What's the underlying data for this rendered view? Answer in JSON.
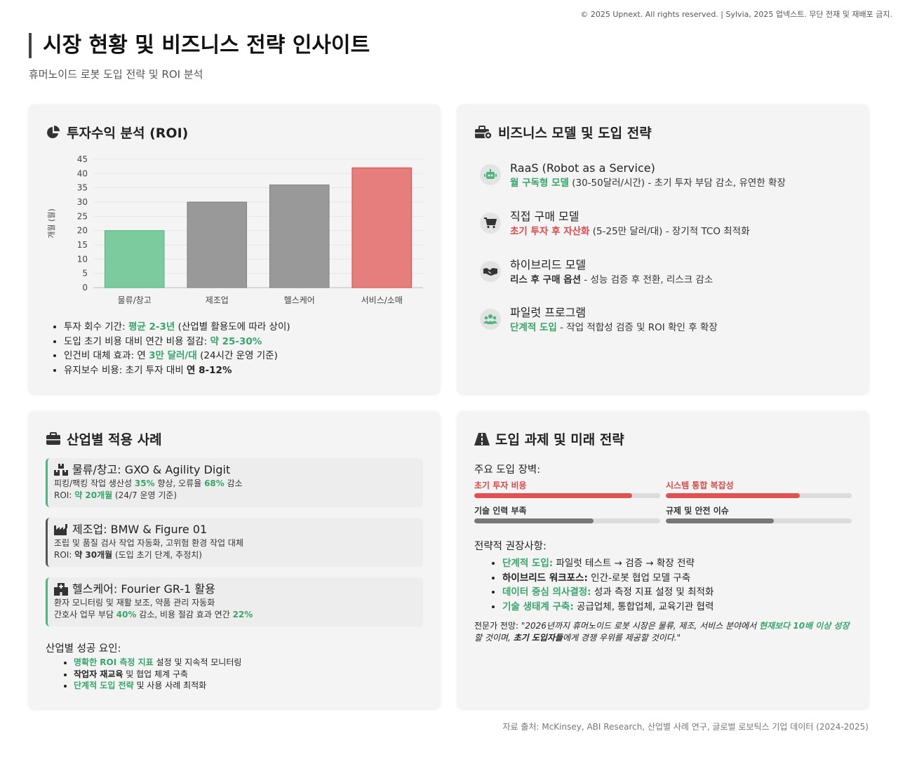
{
  "copyright": "© 2025 Upnext. All rights reserved. | Sylvia, 2025 업넥스트. 무단 전재 및 재배포 금지.",
  "header": {
    "title": "시장 현황 및 비즈니스 전략 인사이트",
    "subtitle": "휴머노이드 로봇 도입 전략 및 ROI 분석"
  },
  "roi": {
    "title": "투자수익 분석 (ROI)",
    "bullets": [
      {
        "pre": "투자 회수 기간: ",
        "hl": "평균 2-3년",
        "post": " (산업별 활용도에 따라 상이)"
      },
      {
        "pre": "도입 초기 비용 대비 연간 비용 절감: ",
        "hl": "약 25-30%",
        "post": ""
      },
      {
        "pre": "인건비 대체 효과: 연 ",
        "hl": "3만 달러/대",
        "post": " (24시간 운영 기준)"
      },
      {
        "pre": "유지보수 비용: 초기 투자 대비 ",
        "hl": "연 8-12%",
        "post": ""
      }
    ]
  },
  "chart_data": {
    "type": "bar",
    "categories": [
      "물류/창고",
      "제조업",
      "헬스케어",
      "서비스/소매"
    ],
    "values": [
      20,
      30,
      36,
      42
    ],
    "ylabel": "개월 (월)",
    "ylim": [
      0,
      45
    ],
    "yticks": [
      0,
      5,
      10,
      15,
      20,
      25,
      30,
      35,
      40,
      45
    ],
    "colors": [
      "#7ccb9f",
      "#999999",
      "#999999",
      "#e57e7c"
    ],
    "border_colors": [
      "#4fb57e",
      "#7f7f7f",
      "#7f7f7f",
      "#d94b4b"
    ],
    "grid": true
  },
  "business": {
    "title": "비즈니스 모델 및 도입 전략",
    "items": [
      {
        "icon": "robot-icon",
        "name": "RaaS (Robot as a Service)",
        "hl": "월 구독형 모델",
        "hl_color": "green",
        "desc": " (30-50달러/시간) - 초기 투자 부담 감소, 유연한 확장"
      },
      {
        "icon": "cart-icon",
        "name": "직접 구매 모델",
        "hl": "초기 투자 후 자산화",
        "hl_color": "red",
        "desc": " (5-25만 달러/대) - 장기적 TCO 최적화"
      },
      {
        "icon": "handshake-icon",
        "name": "하이브리드 모델",
        "hl": "리스 후 구매 옵션",
        "hl_color": "bold",
        "desc": " - 성능 검증 후 전환, 리스크 감소"
      },
      {
        "icon": "users-icon",
        "name": "파일럿 프로그램",
        "hl": "단계적 도입",
        "hl_color": "green",
        "desc": " - 작업 적합성 검증 및 ROI 확인 후 확장"
      }
    ]
  },
  "cases": {
    "title": "산업별 적용 사례",
    "items": [
      {
        "icon": "warehouse-icon",
        "name": "물류/창고: GXO & Agility Digit",
        "l1a": "피킹/팩킹 작업 생산성 ",
        "l1b": "35%",
        "l1c": " 향상, 오류율 ",
        "l1d": "68%",
        "l1e": " 감소",
        "l2a": "ROI: ",
        "l2b": "약 20개월",
        "l2c": " (24/7 운영 기준)"
      },
      {
        "icon": "factory-icon",
        "name": "제조업: BMW & Figure 01",
        "l1a": "조립 및 품질 검사 작업 자동화, 고위험 환경 작업 대체",
        "l2a": "ROI: ",
        "l2b": "약 30개월",
        "l2c": " (도입 초기 단계, 추정치)"
      },
      {
        "icon": "hospital-icon",
        "name": "헬스케어: Fourier GR-1 활용",
        "l1a": "환자 모니터링 및 재활 보조, 약품 관리 자동화",
        "l2a": "간호사 업무 부담 ",
        "l2b": "40%",
        "l2c": " 감소, 비용 절감 효과 연간 ",
        "l2d": "22%"
      }
    ],
    "success_title": "산업별 성공 요인:",
    "success": [
      {
        "hl": "명확한 ROI 측정 지표",
        "rest": " 설정 및 지속적 모니터링"
      },
      {
        "hl": "작업자 재교육",
        "rest": " 및 협업 체계 구축"
      },
      {
        "hl": "단계적 도입 전략",
        "rest": " 및 사용 사례 최적화"
      }
    ]
  },
  "challenges": {
    "title": "도입 과제 및 미래 전략",
    "barriers_title": "주요 도입 장벽:",
    "barriers": [
      {
        "label": "초기 투자 비용",
        "level": 0.85,
        "color": "#e05252"
      },
      {
        "label": "시스템 통합 복잡성",
        "level": 0.72,
        "color": "#e05252"
      },
      {
        "label": "기술 인력 부족",
        "level": 0.64,
        "color": "#777777"
      },
      {
        "label": "규제 및 안전 이슈",
        "level": 0.58,
        "color": "#777777"
      }
    ],
    "strategy_title": "전략적 권장사항:",
    "strategies": [
      {
        "hl": "단계적 도입:",
        "rest": " 파일럿 테스트 → 검증 → 확장 전략"
      },
      {
        "hl": "하이브리드 워크포스:",
        "rest": " 인간-로봇 협업 모델 구축"
      },
      {
        "hl": "데이터 중심 의사결정:",
        "rest": " 성과 측정 지표 설정 및 최적화"
      },
      {
        "hl": "기술 생태계 구축:",
        "rest": " 공급업체, 통합업체, 교육기관 협력"
      }
    ],
    "expert_label": "전문가 전망: ",
    "expert_a": "\"2026년까지 휴머노이드 로봇 시장은 물류, 제조, 서비스 분야에서 ",
    "expert_b": "현재보다 10배 이상 성장",
    "expert_c": "할 것이며, ",
    "expert_d": "초기 도입자들",
    "expert_e": "에게 경쟁 우위를 제공할 것이다.\""
  },
  "source": "자료 출처: McKinsey, ABI Research, 산업별 사례 연구, 글로벌 로보틱스 기업 데이터 (2024-2025)"
}
